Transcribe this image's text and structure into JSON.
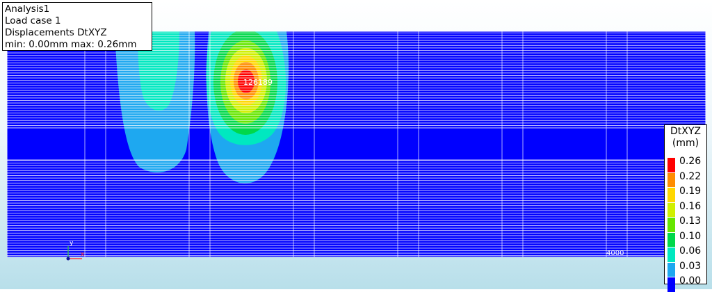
{
  "info": {
    "analysis": "Analysis1",
    "load_case": "Load case 1",
    "result": "Displacements DtXYZ",
    "range": "min:  0.00mm max:  0.26mm"
  },
  "legend": {
    "title_line1": "DtXYZ",
    "title_line2": "(mm)",
    "items": [
      {
        "label": "0.26",
        "color": "#ff0000"
      },
      {
        "label": "0.22",
        "color": "#ff8c00"
      },
      {
        "label": "0.19",
        "color": "#ffd700"
      },
      {
        "label": "0.16",
        "color": "#d0f000"
      },
      {
        "label": "0.13",
        "color": "#66e600"
      },
      {
        "label": "0.10",
        "color": "#00d84a"
      },
      {
        "label": "0.06",
        "color": "#00e8c0"
      },
      {
        "label": "0.03",
        "color": "#1ea8f0"
      },
      {
        "label": "0.00",
        "color": "#0000ff"
      }
    ]
  },
  "model": {
    "max_node_label": "126189",
    "corner_label": "4000",
    "axis_y": "y",
    "axis_x": "x"
  },
  "colors": {
    "mesh_base": "#0000ff",
    "mesh_line": "#ffffff",
    "zone_low": "#1ea8f0",
    "zone_mid": "#00e8c0",
    "zone_peak": "#ff0000"
  }
}
